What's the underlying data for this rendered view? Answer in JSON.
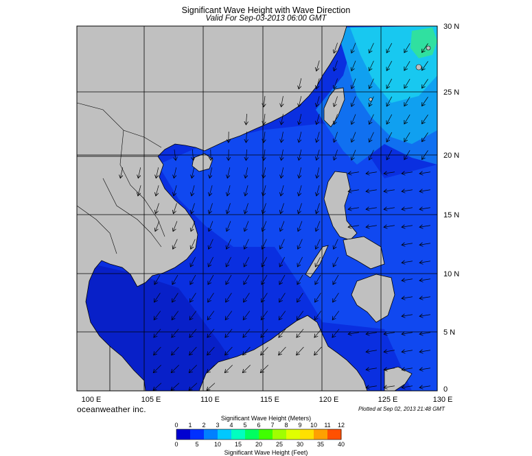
{
  "title": "Significant Wave Height with Wave Direction",
  "subtitle": "Valid For Sep-03-2013 06:00 GMT",
  "credit": "oceanweather inc.",
  "plotted": "Plotted at Sep 02, 2013 21:48 GMT",
  "axes": {
    "lon_labels": [
      "100 E",
      "105 E",
      "110 E",
      "115 E",
      "120 E",
      "125 E",
      "130 E"
    ],
    "lat_labels": [
      "0",
      "5 N",
      "10 N",
      "15 N",
      "20 N",
      "25 N",
      "30 N"
    ],
    "lon_range": [
      99,
      130
    ],
    "lat_range": [
      0,
      30
    ],
    "grid": true
  },
  "colorbar": {
    "title_meters": "Significant Wave Height (Meters)",
    "title_feet": "Significant Wave Height (Feet)",
    "meters_ticks": [
      "0",
      "1",
      "2",
      "3",
      "4",
      "5",
      "6",
      "7",
      "8",
      "9",
      "10",
      "11",
      "12"
    ],
    "feet_ticks": [
      "0",
      "5",
      "10",
      "15",
      "20",
      "25",
      "30",
      "35",
      "40"
    ],
    "colors": [
      "#0000d0",
      "#0030ff",
      "#0080ff",
      "#00c8ff",
      "#00ffc0",
      "#00ff60",
      "#40ff00",
      "#a0ff00",
      "#e0ff00",
      "#ffe000",
      "#ffa000",
      "#ff5000",
      "#ff0000"
    ]
  },
  "colors": {
    "land": "#c0c0c0",
    "sea_low": "#0a2fe0",
    "sea_mid": "#1060f0",
    "sea_high": "#10a0f0",
    "sea_peak": "#30e0a0"
  }
}
